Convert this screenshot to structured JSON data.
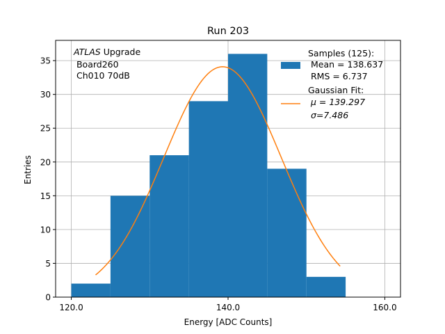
{
  "chart_data": {
    "type": "bar",
    "title": "Run 203",
    "xlabel": "Energy [ADC Counts]",
    "ylabel": "Entries",
    "xlim": [
      118,
      162
    ],
    "ylim": [
      0,
      38
    ],
    "xticks": [
      120,
      140,
      160
    ],
    "xtick_labels": [
      "120.0",
      "140.0",
      "160.0"
    ],
    "yticks": [
      0,
      5,
      10,
      15,
      20,
      25,
      30,
      35
    ],
    "grid": true,
    "bins": [
      {
        "x0": 120.0,
        "x1": 125.0,
        "count": 2
      },
      {
        "x0": 125.0,
        "x1": 130.0,
        "count": 15
      },
      {
        "x0": 130.0,
        "x1": 135.0,
        "count": 21
      },
      {
        "x0": 135.0,
        "x1": 140.0,
        "count": 29
      },
      {
        "x0": 140.0,
        "x1": 145.0,
        "count": 36
      },
      {
        "x0": 145.0,
        "x1": 150.0,
        "count": 19
      },
      {
        "x0": 150.0,
        "x1": 155.0,
        "count": 3
      }
    ],
    "histogram_color": "#1f77b4",
    "fit": {
      "type": "gaussian",
      "mu": 139.297,
      "sigma": 7.486,
      "amplitude": 34.1,
      "x_range": [
        123.1,
        154.3
      ],
      "color": "#ff7f0e"
    },
    "annotation": {
      "italic": "ATLAS",
      "rest": " Upgrade",
      "line2": " Board260",
      "line3": " Ch010 70dB"
    },
    "legend": {
      "placement": "top-right",
      "entries": [
        {
          "kind": "patch",
          "lines": [
            "Samples (125):",
            " Mean = 138.637",
            " RMS = 6.737"
          ]
        },
        {
          "kind": "line",
          "lines": [
            "Gaussian Fit:",
            " μ = 139.297",
            " σ=7.486"
          ]
        }
      ]
    }
  }
}
